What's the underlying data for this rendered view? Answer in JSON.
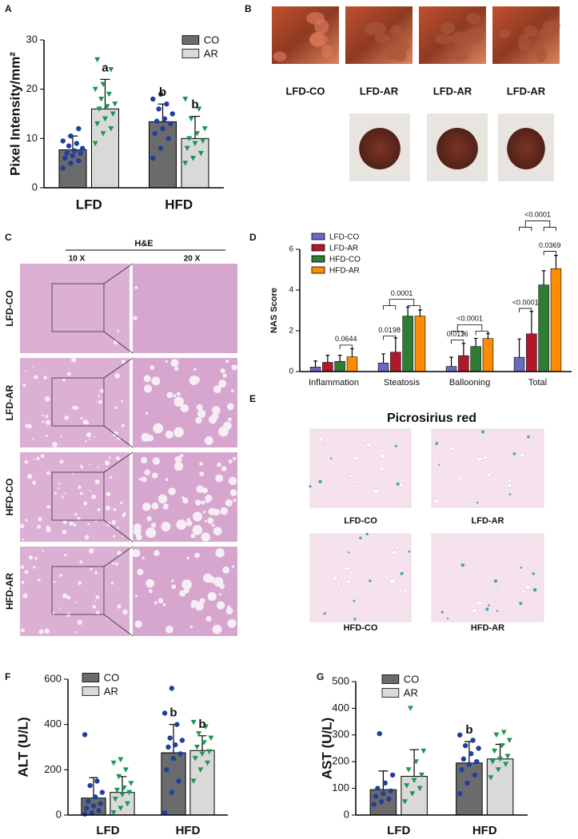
{
  "chart_data": [
    {
      "type": "bar",
      "panel_label": "A",
      "ylabel": "Pixel Intensity/mm²",
      "categories": [
        "LFD",
        "HFD"
      ],
      "series": [
        {
          "name": "CO",
          "color": "#6b6b6b",
          "point_color": "#1f3f9f",
          "marker": "circle",
          "values": [
            7.7,
            13.4
          ],
          "errors": [
            2.8,
            3.6
          ],
          "sig_labels": [
            null,
            "b"
          ],
          "points": [
            [
              4,
              5,
              5.5,
              6,
              6.5,
              7,
              7,
              7.5,
              8,
              8.5,
              9,
              9.5,
              10.5,
              12
            ],
            [
              6,
              8,
              10,
              11,
              12,
              13,
              13.5,
              14,
              15,
              16,
              17,
              18,
              19
            ]
          ]
        },
        {
          "name": "AR",
          "color": "#d9d9d9",
          "point_color": "#1a9850",
          "marker": "triangle",
          "values": [
            16,
            10
          ],
          "errors": [
            6,
            4.5
          ],
          "sig_labels": [
            "a",
            "b"
          ],
          "points": [
            [
              9,
              11,
              12,
              13,
              14,
              15,
              16,
              16.5,
              17,
              18,
              19,
              20,
              21,
              24,
              26
            ],
            [
              5,
              6,
              7,
              8,
              9,
              9.5,
              10,
              11,
              12,
              14,
              16,
              18
            ]
          ]
        }
      ],
      "ylim": [
        0,
        30
      ],
      "yticks": [
        0,
        10,
        20,
        30
      ],
      "grid": false,
      "legend": "upper right"
    },
    {
      "type": "bar",
      "panel_label": "D",
      "ylabel": "NAS Score",
      "categories": [
        "Inflammation",
        "Steatosis",
        "Ballooning",
        "Total"
      ],
      "series": [
        {
          "name": "LFD-CO",
          "color": "#6a6ac2",
          "values": [
            0.22,
            0.42,
            0.25,
            0.7
          ],
          "errors": [
            0.3,
            0.45,
            0.45,
            0.9
          ]
        },
        {
          "name": "LFD-AR",
          "color": "#b2182b",
          "values": [
            0.45,
            0.95,
            0.78,
            1.85
          ],
          "errors": [
            0.35,
            0.7,
            0.6,
            1.1
          ]
        },
        {
          "name": "HFD-CO",
          "color": "#2e7d32",
          "values": [
            0.5,
            2.72,
            1.23,
            4.25
          ],
          "errors": [
            0.3,
            0.45,
            0.4,
            0.7
          ]
        },
        {
          "name": "HFD-AR",
          "color": "#ff8c00",
          "values": [
            0.72,
            2.72,
            1.62,
            5.05
          ],
          "errors": [
            0.4,
            0.3,
            0.25,
            0.65
          ]
        }
      ],
      "annotations": [
        "0.0644",
        "0.0198",
        "0.0001",
        "0.0116",
        "<0.0001",
        "<0.0001",
        "0.0369",
        "<0.0001"
      ],
      "ylim": [
        0,
        6
      ],
      "yticks": [
        0,
        2,
        4,
        6
      ],
      "grid": false,
      "legend": "upper left"
    },
    {
      "type": "bar",
      "panel_label": "F",
      "ylabel": "ALT (U/L)",
      "categories": [
        "LFD",
        "HFD"
      ],
      "series": [
        {
          "name": "CO",
          "color": "#6b6b6b",
          "point_color": "#1f3f9f",
          "marker": "circle",
          "values": [
            75,
            275
          ],
          "errors": [
            90,
            125
          ],
          "sig_labels": [
            null,
            "b"
          ],
          "points": [
            [
              5,
              10,
              20,
              30,
              40,
              50,
              60,
              80,
              100,
              130,
              150,
              355
            ],
            [
              10,
              100,
              150,
              200,
              250,
              270,
              300,
              310,
              330,
              340,
              400,
              450,
              560
            ]
          ]
        },
        {
          "name": "AR",
          "color": "#d9d9d9",
          "point_color": "#1a9850",
          "marker": "triangle",
          "values": [
            100,
            285
          ],
          "errors": [
            70,
            65
          ],
          "sig_labels": [
            null,
            "b"
          ],
          "points": [
            [
              10,
              30,
              50,
              70,
              90,
              100,
              110,
              120,
              140,
              170,
              200,
              230,
              245
            ],
            [
              150,
              200,
              230,
              250,
              270,
              280,
              300,
              320,
              340,
              360,
              390,
              410
            ]
          ]
        }
      ],
      "ylim": [
        0,
        600
      ],
      "yticks": [
        0,
        200,
        400,
        600
      ],
      "grid": false,
      "legend": "upper left"
    },
    {
      "type": "bar",
      "panel_label": "G",
      "ylabel": "AST (U/L)",
      "categories": [
        "LFD",
        "HFD"
      ],
      "series": [
        {
          "name": "CO",
          "color": "#6b6b6b",
          "point_color": "#1f3f9f",
          "marker": "circle",
          "values": [
            95,
            195
          ],
          "errors": [
            70,
            80
          ],
          "sig_labels": [
            null,
            "b"
          ],
          "points": [
            [
              40,
              50,
              60,
              70,
              80,
              90,
              100,
              120,
              150,
              305
            ],
            [
              80,
              120,
              150,
              170,
              190,
              200,
              210,
              230,
              250,
              260,
              280,
              300
            ]
          ]
        },
        {
          "name": "AR",
          "color": "#d9d9d9",
          "point_color": "#1a9850",
          "marker": "triangle",
          "values": [
            145,
            210
          ],
          "errors": [
            100,
            55
          ],
          "points": [
            [
              50,
              80,
              100,
              110,
              130,
              150,
              170,
              200,
              240,
              400
            ],
            [
              140,
              170,
              190,
              200,
              210,
              220,
              240,
              260,
              280,
              300,
              310
            ]
          ]
        }
      ],
      "ylim": [
        0,
        500
      ],
      "yticks": [
        0,
        100,
        200,
        300,
        400,
        500
      ],
      "grid": false,
      "legend": "upper left"
    }
  ],
  "panel_B": {
    "label": "B",
    "labels": [
      "LFD-CO",
      "LFD-AR",
      "LFD-AR",
      "LFD-AR"
    ]
  },
  "panel_C": {
    "label": "C",
    "title": "H&E",
    "columns": [
      "10 X",
      "20 X"
    ],
    "rows": [
      "LFD-CO",
      "LFD-AR",
      "HFD-CO",
      "HFD-AR"
    ]
  },
  "panel_E": {
    "label": "E",
    "title": "Picrosirius red",
    "labels": [
      "LFD-CO",
      "LFD-AR",
      "HFD-CO",
      "HFD-AR"
    ]
  }
}
